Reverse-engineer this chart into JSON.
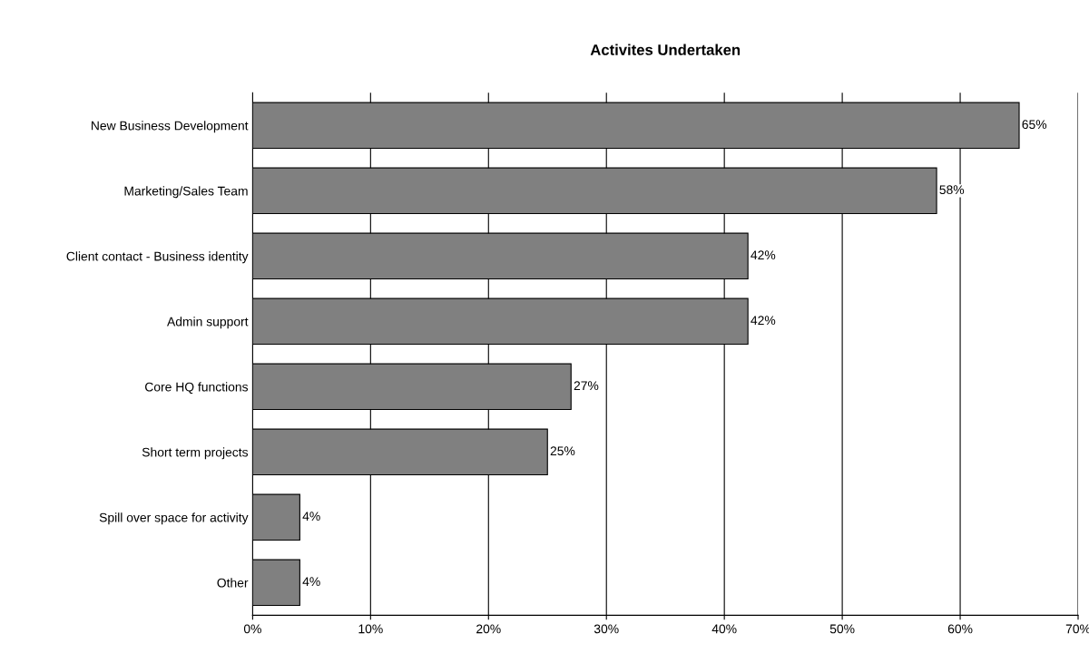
{
  "chart_data": {
    "type": "bar",
    "orientation": "horizontal",
    "title": "Activites Undertaken",
    "categories": [
      "New Business Development",
      "Marketing/Sales Team",
      "Client contact - Business identity",
      "Admin support",
      "Core HQ functions",
      "Short term projects",
      "Spill over space for activity",
      "Other"
    ],
    "values": [
      65,
      58,
      42,
      42,
      27,
      25,
      4,
      4
    ],
    "value_labels": [
      "65%",
      "58%",
      "42%",
      "42%",
      "27%",
      "25%",
      "4%",
      "4%"
    ],
    "color": "#808080",
    "xlim": [
      0,
      70
    ],
    "xticks": [
      {
        "value": 0,
        "label": "0%"
      },
      {
        "value": 10,
        "label": "10%"
      },
      {
        "value": 20,
        "label": "20%"
      },
      {
        "value": 30,
        "label": "30%"
      },
      {
        "value": 40,
        "label": "40%"
      },
      {
        "value": 50,
        "label": "50%"
      },
      {
        "value": 60,
        "label": "60%"
      },
      {
        "value": 70,
        "label": "70%"
      }
    ],
    "grid": "x",
    "legend": false
  }
}
